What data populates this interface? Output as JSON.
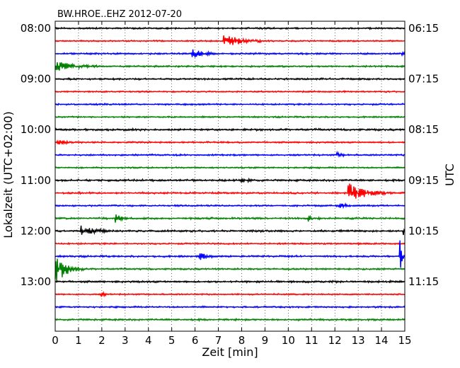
{
  "chart_data": {
    "type": "line",
    "title": "BW.HROE..EHZ 2012-07-20",
    "xlabel": "Zeit  [min]",
    "ylabel_left": "Lokalzeit (UTC+02:00)",
    "ylabel_right": "UTC",
    "xlim": [
      0,
      15
    ],
    "x_ticks": [
      "0",
      "1",
      "2",
      "3",
      "4",
      "5",
      "6",
      "7",
      "8",
      "9",
      "10",
      "11",
      "12",
      "13",
      "14",
      "15"
    ],
    "left_ticks": [
      "08:00",
      "09:00",
      "10:00",
      "11:00",
      "12:00",
      "13:00"
    ],
    "right_ticks": [
      "06:15",
      "07:15",
      "08:15",
      "09:15",
      "10:15",
      "11:15"
    ],
    "grid_x": true,
    "colors": [
      "#000000",
      "#ff0000",
      "#0000ff",
      "#008000"
    ],
    "traces": [
      {
        "index": 0,
        "noise": 0.9,
        "events": []
      },
      {
        "index": 1,
        "noise": 0.8,
        "events": [
          {
            "t": 7.25,
            "amp": 12,
            "dur": 1.6
          }
        ]
      },
      {
        "index": 2,
        "noise": 0.9,
        "events": [
          {
            "t": 5.9,
            "amp": 6,
            "dur": 1.2
          },
          {
            "t": 14.9,
            "amp": 10,
            "dur": 0.1
          }
        ]
      },
      {
        "index": 3,
        "noise": 0.9,
        "events": [
          {
            "t": 0.0,
            "amp": 8,
            "dur": 1.8
          }
        ]
      },
      {
        "index": 4,
        "noise": 1.0,
        "events": []
      },
      {
        "index": 5,
        "noise": 0.8,
        "events": []
      },
      {
        "index": 6,
        "noise": 0.9,
        "events": []
      },
      {
        "index": 7,
        "noise": 0.8,
        "events": []
      },
      {
        "index": 8,
        "noise": 1.1,
        "events": []
      },
      {
        "index": 9,
        "noise": 0.9,
        "events": [
          {
            "t": 0.1,
            "amp": 4,
            "dur": 0.8
          }
        ]
      },
      {
        "index": 10,
        "noise": 0.9,
        "events": [
          {
            "t": 12.1,
            "amp": 3,
            "dur": 0.5
          }
        ]
      },
      {
        "index": 11,
        "noise": 0.8,
        "events": []
      },
      {
        "index": 12,
        "noise": 1.1,
        "events": [
          {
            "t": 8.0,
            "amp": 2,
            "dur": 1.0
          }
        ]
      },
      {
        "index": 13,
        "noise": 1.0,
        "events": [
          {
            "t": 12.6,
            "amp": 14,
            "dur": 1.6
          }
        ]
      },
      {
        "index": 14,
        "noise": 0.9,
        "events": [
          {
            "t": 12.2,
            "amp": 4,
            "dur": 0.8
          }
        ]
      },
      {
        "index": 15,
        "noise": 1.0,
        "events": [
          {
            "t": 2.6,
            "amp": 6,
            "dur": 0.6
          },
          {
            "t": 10.8,
            "amp": 6,
            "dur": 0.6
          }
        ]
      },
      {
        "index": 16,
        "noise": 1.1,
        "events": [
          {
            "t": 1.1,
            "amp": 7,
            "dur": 1.4
          },
          {
            "t": 14.95,
            "amp": 16,
            "dur": 0.05
          }
        ]
      },
      {
        "index": 17,
        "noise": 0.9,
        "events": []
      },
      {
        "index": 18,
        "noise": 1.0,
        "events": [
          {
            "t": 6.2,
            "amp": 5,
            "dur": 0.7
          },
          {
            "t": 14.8,
            "amp": 22,
            "dur": 0.2
          }
        ]
      },
      {
        "index": 19,
        "noise": 0.9,
        "events": [
          {
            "t": 0.0,
            "amp": 22,
            "dur": 1.2
          }
        ]
      },
      {
        "index": 20,
        "noise": 1.1,
        "events": []
      },
      {
        "index": 21,
        "noise": 0.8,
        "events": [
          {
            "t": 2.0,
            "amp": 3,
            "dur": 0.4
          }
        ]
      },
      {
        "index": 22,
        "noise": 0.9,
        "events": []
      },
      {
        "index": 23,
        "noise": 1.0,
        "events": []
      }
    ]
  }
}
